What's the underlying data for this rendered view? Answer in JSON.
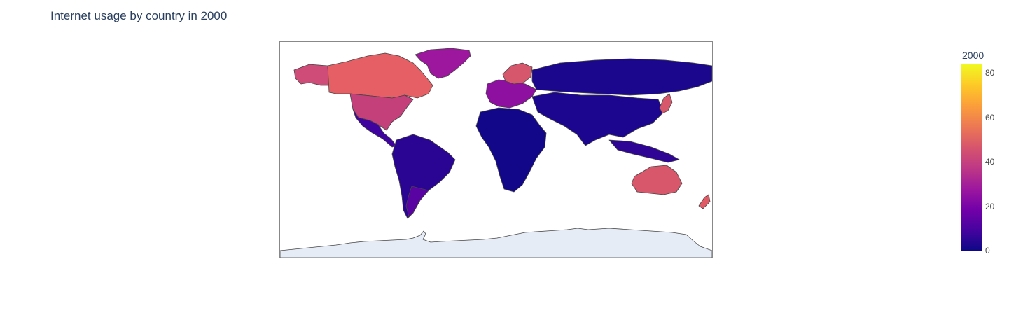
{
  "title": "Internet usage by country in 2000",
  "colorbar": {
    "title": "2000",
    "range": [
      0,
      84
    ],
    "ticks": [
      "0",
      "20",
      "40",
      "60",
      "80"
    ],
    "colorscale": [
      "#0d0887",
      "#46039f",
      "#7201a8",
      "#9c179e",
      "#bd3786",
      "#d8576b",
      "#ed7953",
      "#fb9f3a",
      "#fdca26",
      "#f0f921"
    ]
  },
  "map": {
    "projection": "equirectangular",
    "land_background": "#e5ecf6",
    "border_color": "#444444"
  }
}
